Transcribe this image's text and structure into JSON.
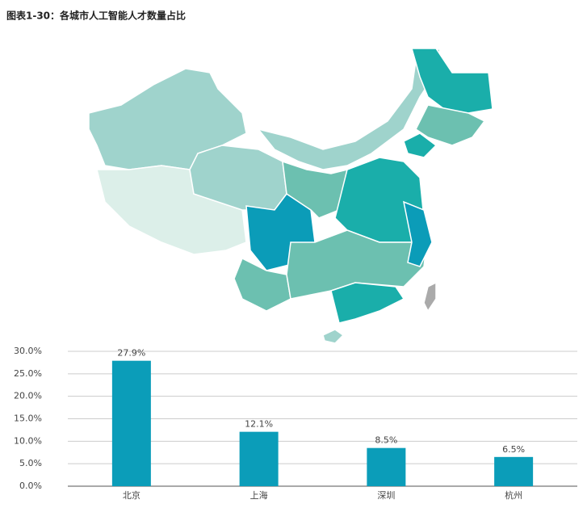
{
  "title": "图表1-30：各城市人工智能人才数量占比",
  "chart_data": {
    "type": "bar",
    "categories": [
      "北京",
      "上海",
      "深圳",
      "杭州"
    ],
    "values": [
      27.9,
      12.1,
      8.5,
      6.5
    ],
    "value_labels": [
      "27.9%",
      "12.1%",
      "8.5%",
      "6.5%"
    ],
    "color": "#0b9db9",
    "ylim": [
      0,
      30
    ],
    "yticks": [
      {
        "value": 0,
        "label": "0.0%"
      },
      {
        "value": 5,
        "label": "5.0%"
      },
      {
        "value": 10,
        "label": "10.0%"
      },
      {
        "value": 15,
        "label": "15.0%"
      },
      {
        "value": 20,
        "label": "20.0%"
      },
      {
        "value": 25,
        "label": "25.0%"
      },
      {
        "value": 30,
        "label": "30.0%"
      }
    ],
    "grid": true
  }
}
